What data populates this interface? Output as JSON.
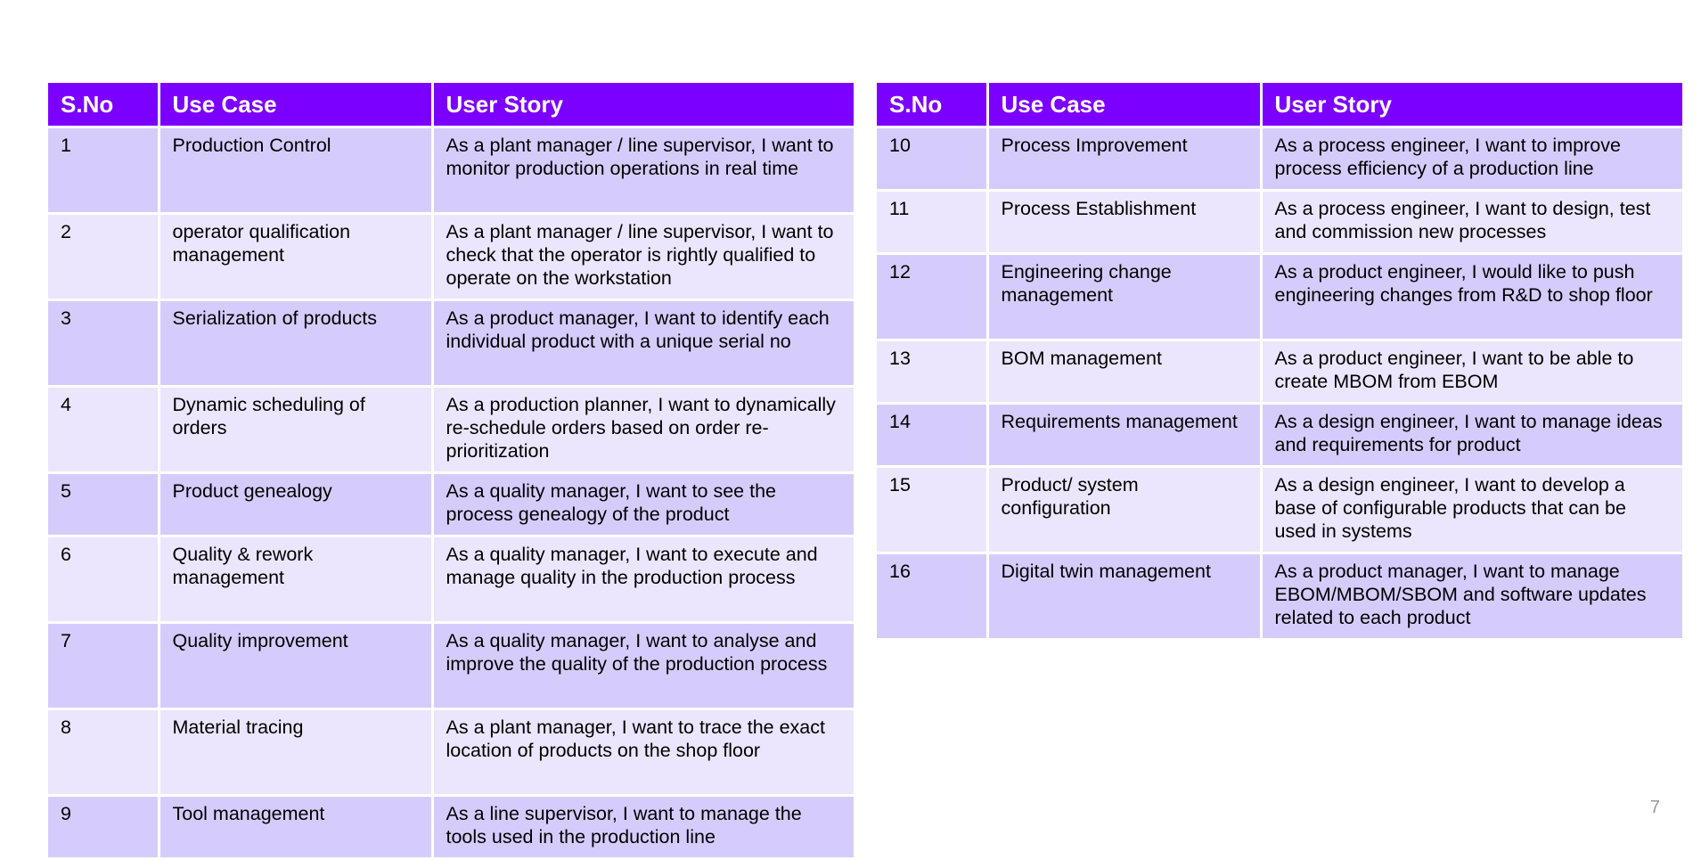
{
  "columns": {
    "sno": "S.No",
    "use_case": "Use Case",
    "user_story": "User Story"
  },
  "left_rows": [
    {
      "sno": "1",
      "use_case": "Production Control",
      "user_story": "As a plant manager / line supervisor, I want to monitor production operations in real time"
    },
    {
      "sno": "2",
      "use_case": "operator qualification management",
      "user_story": "As a plant manager / line supervisor, I want to check that the operator is rightly qualified to operate on the workstation"
    },
    {
      "sno": "3",
      "use_case": "Serialization of products",
      "user_story": "As a product manager, I want to identify each individual product with a unique serial no"
    },
    {
      "sno": "4",
      "use_case": "Dynamic scheduling of orders",
      "user_story": "As a production planner, I want to dynamically re-schedule orders based on order re-prioritization"
    },
    {
      "sno": "5",
      "use_case": "Product genealogy",
      "user_story": "As a quality manager, I want to see the process genealogy of the product"
    },
    {
      "sno": "6",
      "use_case": "Quality & rework management",
      "user_story": "As a quality manager, I want to execute and manage quality in the production process"
    },
    {
      "sno": "7",
      "use_case": "Quality improvement",
      "user_story": "As a quality manager, I want to analyse and improve the quality of the production process"
    },
    {
      "sno": "8",
      "use_case": "Material tracing",
      "user_story": "As a plant manager, I want to trace the exact location of products on the shop floor"
    },
    {
      "sno": "9",
      "use_case": "Tool management",
      "user_story": "As a line supervisor, I want to manage the tools used in the production line"
    }
  ],
  "right_rows": [
    {
      "sno": "10",
      "use_case": "Process Improvement",
      "user_story": "As a process engineer, I want to improve process efficiency of a production line"
    },
    {
      "sno": "11",
      "use_case": "Process Establishment",
      "user_story": "As a process engineer, I want to design, test and commission new processes"
    },
    {
      "sno": "12",
      "use_case": "Engineering change management",
      "user_story": "As a product engineer, I would like to push engineering changes from R&D to shop floor"
    },
    {
      "sno": "13",
      "use_case": "BOM management",
      "user_story": "As a product engineer, I want to be able to create MBOM from EBOM"
    },
    {
      "sno": "14",
      "use_case": "Requirements management",
      "user_story": "As a design engineer, I want to manage ideas and requirements for product"
    },
    {
      "sno": "15",
      "use_case": "Product/ system configuration",
      "user_story": "As a design engineer, I want to develop a base of configurable products that can be used in systems"
    },
    {
      "sno": "16",
      "use_case": "Digital twin management",
      "user_story": "As a product manager, I want to manage EBOM/MBOM/SBOM and software updates related to each product"
    }
  ],
  "page_number": "7",
  "colors": {
    "header_bg": "#7c00ff",
    "row_odd": "#d6ccfc",
    "row_even": "#ebe6fd"
  }
}
